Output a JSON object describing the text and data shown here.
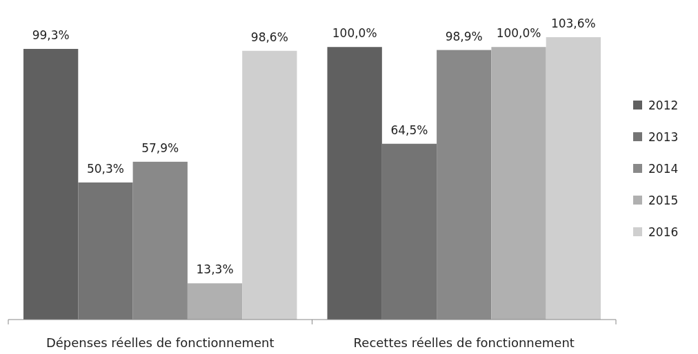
{
  "chart_data": {
    "type": "bar",
    "categories": [
      "Dépenses réelles de fonctionnement",
      "Recettes réelles de fonctionnement"
    ],
    "series": [
      {
        "name": "2012",
        "color": "#606060",
        "values": [
          99.3,
          100.0
        ],
        "value_labels": [
          "99,3%",
          "100,0%"
        ]
      },
      {
        "name": "2013",
        "color": "#747474",
        "values": [
          50.3,
          64.5
        ],
        "value_labels": [
          "50,3%",
          "64,5%"
        ]
      },
      {
        "name": "2014",
        "color": "#898989",
        "values": [
          57.9,
          98.9
        ],
        "value_labels": [
          "57,9%",
          "98,9%"
        ]
      },
      {
        "name": "2015",
        "color": "#b0b0b0",
        "values": [
          13.3,
          100.0
        ],
        "value_labels": [
          "13,3%",
          "100,0%"
        ]
      },
      {
        "name": "2016",
        "color": "#cfcfcf",
        "values": [
          98.6,
          103.6
        ],
        "value_labels": [
          "98,6%",
          "103,6%"
        ]
      }
    ],
    "legend": "right"
  }
}
